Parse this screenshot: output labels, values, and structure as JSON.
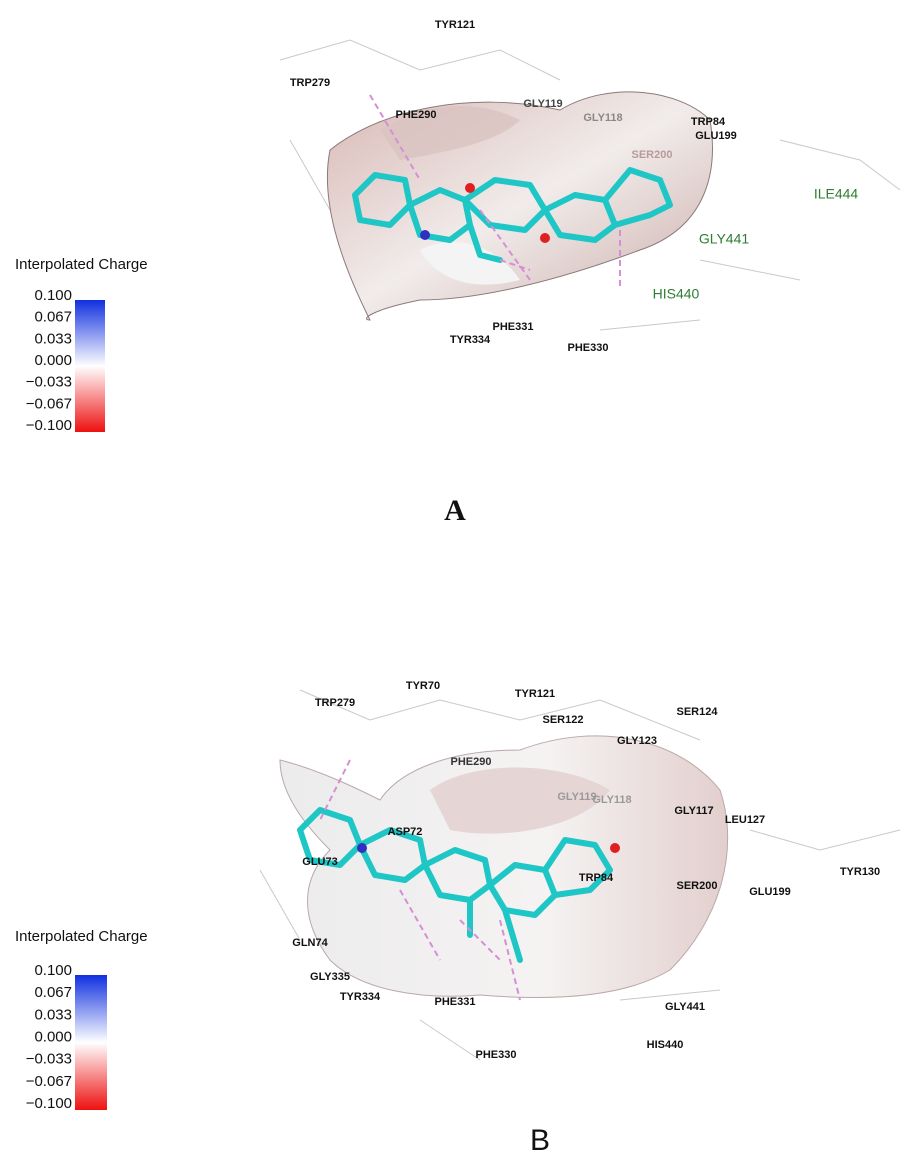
{
  "panels": [
    {
      "label": "A",
      "legend": {
        "title": "Interpolated Charge",
        "ticks": [
          "0.100",
          "0.067",
          "0.033",
          "0.000",
          "−0.033",
          "−0.067",
          "−0.100"
        ]
      },
      "residues": [
        {
          "text": "TYR121",
          "color": "#111111"
        },
        {
          "text": "TRP279",
          "color": "#111111"
        },
        {
          "text": "PHE290",
          "color": "#111111"
        },
        {
          "text": "GLY119",
          "color": "#444444"
        },
        {
          "text": "GLY118",
          "color": "#888888"
        },
        {
          "text": "TRP84",
          "color": "#111111"
        },
        {
          "text": "GLU199",
          "color": "#111111"
        },
        {
          "text": "SER200",
          "color": "#b89a9a"
        },
        {
          "text": "ILE444",
          "color": "#2e7d32"
        },
        {
          "text": "GLY441",
          "color": "#2e7d32"
        },
        {
          "text": "HIS440",
          "color": "#2e7d32"
        },
        {
          "text": "PHE331",
          "color": "#111111"
        },
        {
          "text": "TYR334",
          "color": "#111111"
        },
        {
          "text": "PHE330",
          "color": "#111111"
        }
      ]
    },
    {
      "label": "B",
      "legend": {
        "title": "Interpolated Charge",
        "ticks": [
          "0.100",
          "0.067",
          "0.033",
          "0.000",
          "−0.033",
          "−0.067",
          "−0.100"
        ]
      },
      "residues": [
        {
          "text": "TRP279",
          "color": "#111111"
        },
        {
          "text": "TYR70",
          "color": "#111111"
        },
        {
          "text": "TYR121",
          "color": "#111111"
        },
        {
          "text": "SER122",
          "color": "#111111"
        },
        {
          "text": "SER124",
          "color": "#111111"
        },
        {
          "text": "GLY123",
          "color": "#111111"
        },
        {
          "text": "PHE290",
          "color": "#333333"
        },
        {
          "text": "GLY119",
          "color": "#999999"
        },
        {
          "text": "GLY118",
          "color": "#999999"
        },
        {
          "text": "GLY117",
          "color": "#111111"
        },
        {
          "text": "LEU127",
          "color": "#111111"
        },
        {
          "text": "ASP72",
          "color": "#111111"
        },
        {
          "text": "GLU73",
          "color": "#111111"
        },
        {
          "text": "TRP84",
          "color": "#111111"
        },
        {
          "text": "SER200",
          "color": "#111111"
        },
        {
          "text": "GLU199",
          "color": "#111111"
        },
        {
          "text": "TYR130",
          "color": "#111111"
        },
        {
          "text": "GLN74",
          "color": "#111111"
        },
        {
          "text": "GLY335",
          "color": "#111111"
        },
        {
          "text": "TYR334",
          "color": "#111111"
        },
        {
          "text": "PHE331",
          "color": "#111111"
        },
        {
          "text": "GLY441",
          "color": "#111111"
        },
        {
          "text": "HIS440",
          "color": "#111111"
        },
        {
          "text": "PHE330",
          "color": "#111111"
        }
      ]
    }
  ]
}
